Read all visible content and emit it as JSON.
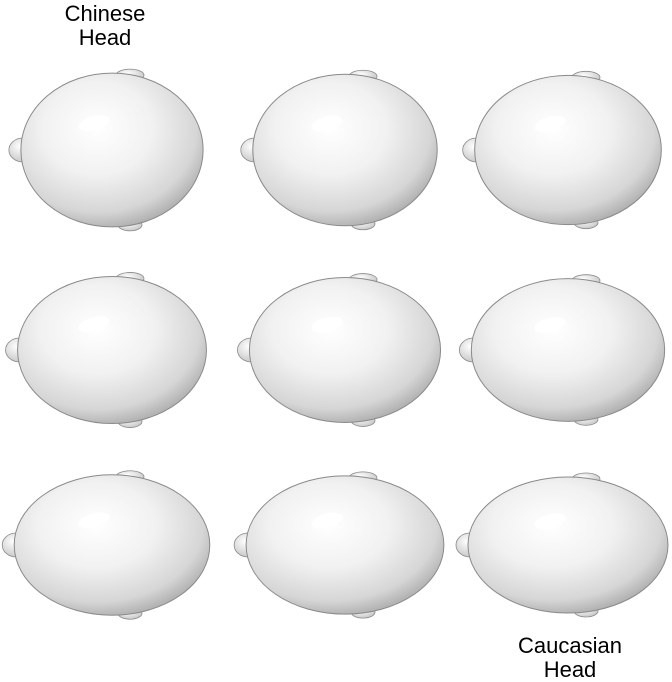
{
  "labels": {
    "top": [
      "Chinese",
      "Head"
    ],
    "bottom": [
      "Caucasian",
      "Head"
    ]
  },
  "grid": {
    "rows": 3,
    "cols": 3,
    "head_count": 9
  },
  "colors": {
    "background": "#ffffff",
    "head_light": "#ffffff",
    "head_mid": "#ececec",
    "head_dark": "#a8a8a8",
    "outline": "#8a8a8a"
  }
}
